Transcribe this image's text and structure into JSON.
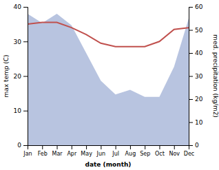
{
  "chart_data": {
    "type": "line",
    "categories": [
      "Jan",
      "Feb",
      "Mar",
      "Apr",
      "May",
      "Jun",
      "Jul",
      "Aug",
      "Sep",
      "Oct",
      "Nov",
      "Dec"
    ],
    "xlabel": "date (month)",
    "ylabel": "max temp (C)",
    "y2label": "med. precipitation (kg/m2)",
    "series": [
      {
        "type": "area",
        "axis": "y2",
        "color": "#b8c4e0",
        "values": [
          57,
          53,
          57,
          52,
          40,
          28,
          22,
          24,
          21,
          21,
          34,
          55
        ]
      },
      {
        "type": "line",
        "color": "#c0504d",
        "values": [
          35,
          35.5,
          35.5,
          34,
          32,
          29.5,
          28.5,
          28.5,
          28.5,
          30,
          33.5,
          34
        ]
      }
    ],
    "ylim": [
      0,
      40
    ],
    "yticks": [
      0,
      10,
      20,
      30,
      40
    ],
    "y2lim": [
      0,
      60
    ],
    "y2ticks": [
      0,
      10,
      20,
      30,
      40,
      50,
      60
    ]
  }
}
